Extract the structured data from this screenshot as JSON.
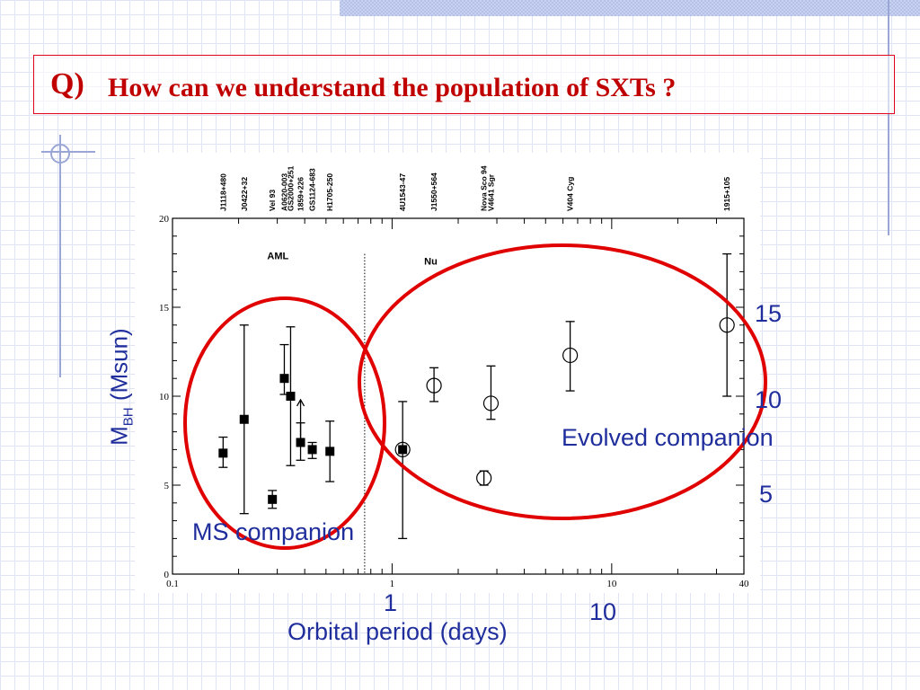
{
  "slide": {
    "title_q": "Q)",
    "title_text": "How can we understand the population of SXTs ?"
  },
  "overlay": {
    "ylabel_main": "M",
    "ylabel_sub": "BH",
    "ylabel_unit": " (Msun)",
    "xlabel": "Orbital period (days)",
    "ms_companion": "MS companion",
    "evolved_companion": "Evolved companion",
    "x_tick_1": "1",
    "x_tick_10": "10",
    "y_tick_5": "5",
    "y_tick_10": "10",
    "y_tick_15": "15"
  },
  "chart_data": {
    "type": "scatter",
    "x_scale": "log",
    "xlim": [
      0.1,
      40
    ],
    "ylim": [
      0,
      20
    ],
    "x_ticks": [
      0.1,
      1,
      10,
      40
    ],
    "x_tick_labels": [
      "0.1",
      "1",
      "10",
      "40"
    ],
    "y_ticks": [
      0,
      5,
      10,
      15,
      20
    ],
    "y_tick_labels": [
      "0",
      "5",
      "10",
      "15",
      "20"
    ],
    "divider_x": 0.75,
    "region_labels": [
      {
        "text": "AML",
        "x": 0.27,
        "y": 17.7
      },
      {
        "text": "Nu",
        "x": 1.4,
        "y": 17.4
      }
    ],
    "top_labels": [
      {
        "text": "J1118+480",
        "x": 0.17
      },
      {
        "text": "J0422+32",
        "x": 0.212
      },
      {
        "text": "Vel 93",
        "x": 0.285
      },
      {
        "text": "A0620-003",
        "x": 0.323
      },
      {
        "text": "GS2000+251",
        "x": 0.345
      },
      {
        "text": "1859+226",
        "x": 0.383
      },
      {
        "text": "GS1124-683",
        "x": 0.433
      },
      {
        "text": "H1705-250",
        "x": 0.521
      },
      {
        "text": "4U1543-47",
        "x": 1.117
      },
      {
        "text": "J1550+564",
        "x": 1.552
      },
      {
        "text": "Nova Sco 94",
        "x": 2.62
      },
      {
        "text": "V4641 Sgr",
        "x": 2.82
      },
      {
        "text": "V404 Cyg",
        "x": 6.47
      },
      {
        "text": "1915+105",
        "x": 33.5
      }
    ],
    "series": [
      {
        "marker": "filled-square",
        "points": [
          {
            "x": 0.17,
            "y": 6.8,
            "lo": 6.0,
            "hi": 7.7
          },
          {
            "x": 0.212,
            "y": 8.7,
            "lo": 3.4,
            "hi": 14.0
          },
          {
            "x": 0.285,
            "y": 4.2,
            "lo": 3.7,
            "hi": 4.7
          },
          {
            "x": 0.323,
            "y": 11.0,
            "lo": 10.1,
            "hi": 12.9
          },
          {
            "x": 0.345,
            "y": 10.0,
            "lo": 6.1,
            "hi": 13.9
          },
          {
            "x": 0.383,
            "y": 7.4,
            "lo": 6.4,
            "hi": 8.5
          },
          {
            "x": 0.433,
            "y": 7.0,
            "lo": 6.5,
            "hi": 7.4
          },
          {
            "x": 0.521,
            "y": 6.9,
            "lo": 5.2,
            "hi": 8.6
          },
          {
            "x": 1.117,
            "y": 7.0,
            "lo": 2.0,
            "hi": 9.7
          }
        ]
      },
      {
        "marker": "open-circle",
        "points": [
          {
            "x": 1.117,
            "y": 7.0,
            "lo": 7.0,
            "hi": 7.0
          },
          {
            "x": 1.552,
            "y": 10.6,
            "lo": 9.7,
            "hi": 11.6
          },
          {
            "x": 2.62,
            "y": 5.4,
            "lo": 5.0,
            "hi": 5.8
          },
          {
            "x": 2.82,
            "y": 9.6,
            "lo": 8.7,
            "hi": 11.7
          },
          {
            "x": 6.47,
            "y": 12.3,
            "lo": 10.3,
            "hi": 14.2
          },
          {
            "x": 33.5,
            "y": 14.0,
            "lo": 10.0,
            "hi": 18.0
          }
        ]
      }
    ],
    "lower_limit_arrow": {
      "x": 0.383,
      "from_y": 7.4,
      "to_y": 9.8
    },
    "annotation_color": "#e00000",
    "text_color": "#1f2e9c"
  }
}
